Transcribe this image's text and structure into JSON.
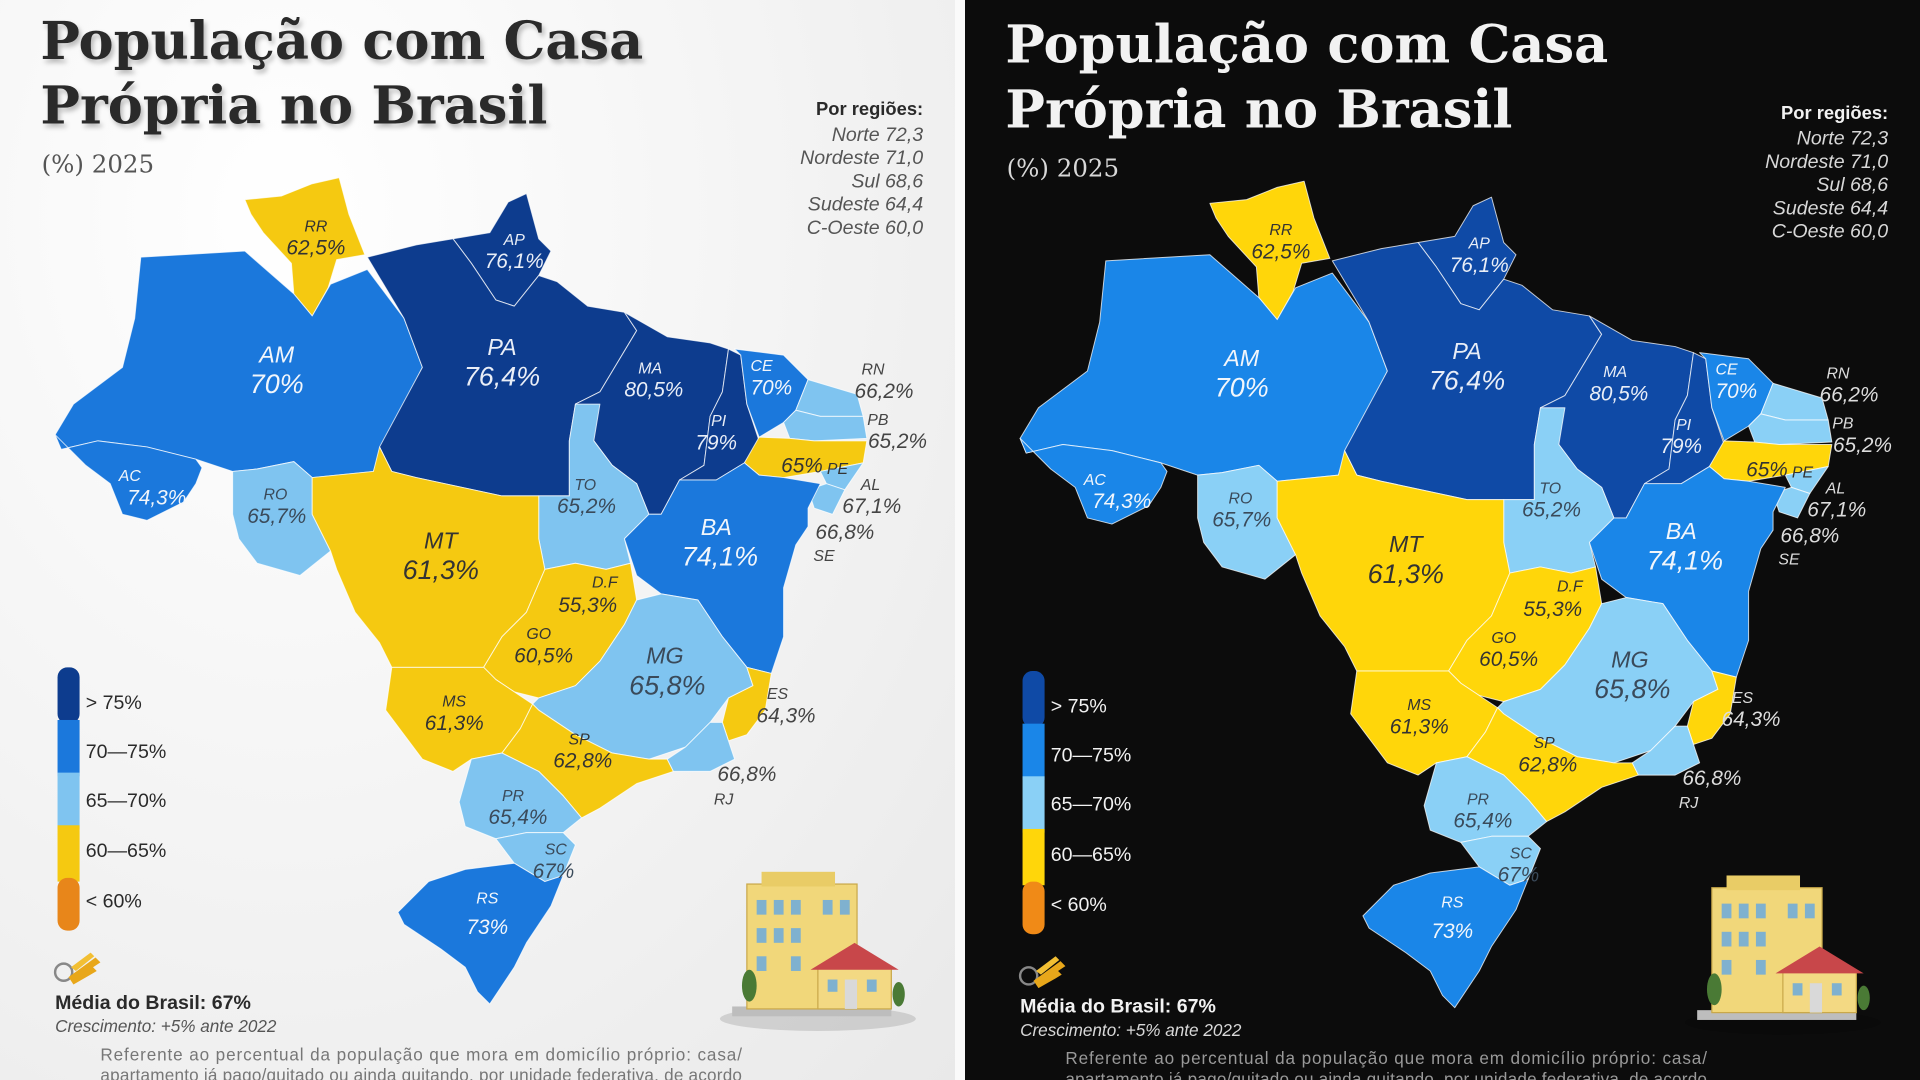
{
  "title_line1": "População com Casa",
  "title_line2": "Própria no Brasil",
  "subtitle": "(%) 2025",
  "regions": {
    "heading": "Por regiões:",
    "items": [
      "Norte 72,3",
      "Nordeste 71,0",
      "Sul 68,6",
      "Sudeste 64,4",
      "C-Oeste 60,0"
    ]
  },
  "legend": [
    {
      "label": "> 75%",
      "color": "#0d3c8e"
    },
    {
      "label": "70—75%",
      "color": "#1b78dc"
    },
    {
      "label": "65—70%",
      "color": "#7fc4f0"
    },
    {
      "label": "60—65%",
      "color": "#f5c911"
    },
    {
      "label": "< 60%",
      "color": "#e8861a"
    }
  ],
  "states": [
    {
      "abbr": "RR",
      "value": "62,5%",
      "tier": 3
    },
    {
      "abbr": "AP",
      "value": "76,1%",
      "tier": 0
    },
    {
      "abbr": "AM",
      "value": "70%",
      "tier": 1
    },
    {
      "abbr": "PA",
      "value": "76,4%",
      "tier": 0
    },
    {
      "abbr": "MA",
      "value": "80,5%",
      "tier": 0
    },
    {
      "abbr": "PI",
      "value": "79%",
      "tier": 0
    },
    {
      "abbr": "CE",
      "value": "70%",
      "tier": 1
    },
    {
      "abbr": "RN",
      "value": "66,2%",
      "tier": 2
    },
    {
      "abbr": "PB",
      "value": "65,2%",
      "tier": 2
    },
    {
      "abbr": "PE",
      "value": "65%",
      "tier": 3
    },
    {
      "abbr": "AL",
      "value": "67,1%",
      "tier": 2
    },
    {
      "abbr": "SE",
      "value": "66,8%",
      "tier": 2
    },
    {
      "abbr": "AC",
      "value": "74,3%",
      "tier": 1
    },
    {
      "abbr": "RO",
      "value": "65,7%",
      "tier": 2
    },
    {
      "abbr": "TO",
      "value": "65,2%",
      "tier": 2
    },
    {
      "abbr": "BA",
      "value": "74,1%",
      "tier": 1
    },
    {
      "abbr": "MT",
      "value": "61,3%",
      "tier": 3
    },
    {
      "abbr": "D.F",
      "value": "55,3%",
      "tier": 4
    },
    {
      "abbr": "GO",
      "value": "60,5%",
      "tier": 3
    },
    {
      "abbr": "MG",
      "value": "65,8%",
      "tier": 2
    },
    {
      "abbr": "MS",
      "value": "61,3%",
      "tier": 3
    },
    {
      "abbr": "ES",
      "value": "64,3%",
      "tier": 3
    },
    {
      "abbr": "SP",
      "value": "62,8%",
      "tier": 3
    },
    {
      "abbr": "RJ",
      "value": "66,8%",
      "tier": 2
    },
    {
      "abbr": "PR",
      "value": "65,4%",
      "tier": 2
    },
    {
      "abbr": "SC",
      "value": "67%",
      "tier": 2
    },
    {
      "abbr": "RS",
      "value": "73%",
      "tier": 1
    }
  ],
  "average": "Média do Brasil: 67%",
  "growth": "Crescimento: +5% ante 2022",
  "footnote_line1": "Referente ao percentual da população que mora em domicílio próprio: casa/",
  "footnote_line2": "apartamento já pago/quitado ou ainda quitando, por unidade federativa, de acordo"
}
